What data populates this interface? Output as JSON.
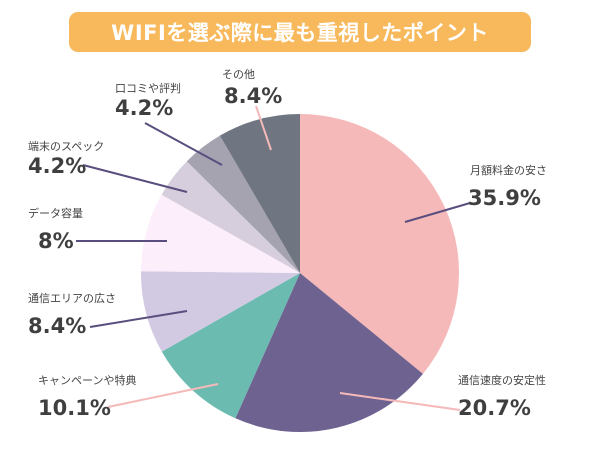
{
  "chart_data": {
    "type": "pie",
    "title": "WIFIを選ぶ際に最も重視したポイント",
    "slices": [
      {
        "label": "月額料金の安さ",
        "value": 35.9,
        "pct_label": "35.9%",
        "color": "#f4b9b8"
      },
      {
        "label": "通信速度の安定性",
        "value": 20.7,
        "pct_label": "20.7%",
        "color": "#6e6291"
      },
      {
        "label": "キャンペーンや特典",
        "value": 10.1,
        "pct_label": "10.1%",
        "color": "#6bbbb0"
      },
      {
        "label": "通信エリアの広さ",
        "value": 8.4,
        "pct_label": "8.4%",
        "color": "#d2c9e2"
      },
      {
        "label": "データ容量",
        "value": 8,
        "pct_label": "8%",
        "color": "#fdeefc"
      },
      {
        "label": "端末のスペック",
        "value": 4.2,
        "pct_label": "4.2%",
        "color": "#d6cedc"
      },
      {
        "label": "口コミや評判",
        "value": 4.2,
        "pct_label": "4.2%",
        "color": "#a6a3b1"
      },
      {
        "label": "その他",
        "value": 8.4,
        "pct_label": "8.4%",
        "color": "#6f7681"
      }
    ],
    "start": "top",
    "direction": "clockwise"
  }
}
